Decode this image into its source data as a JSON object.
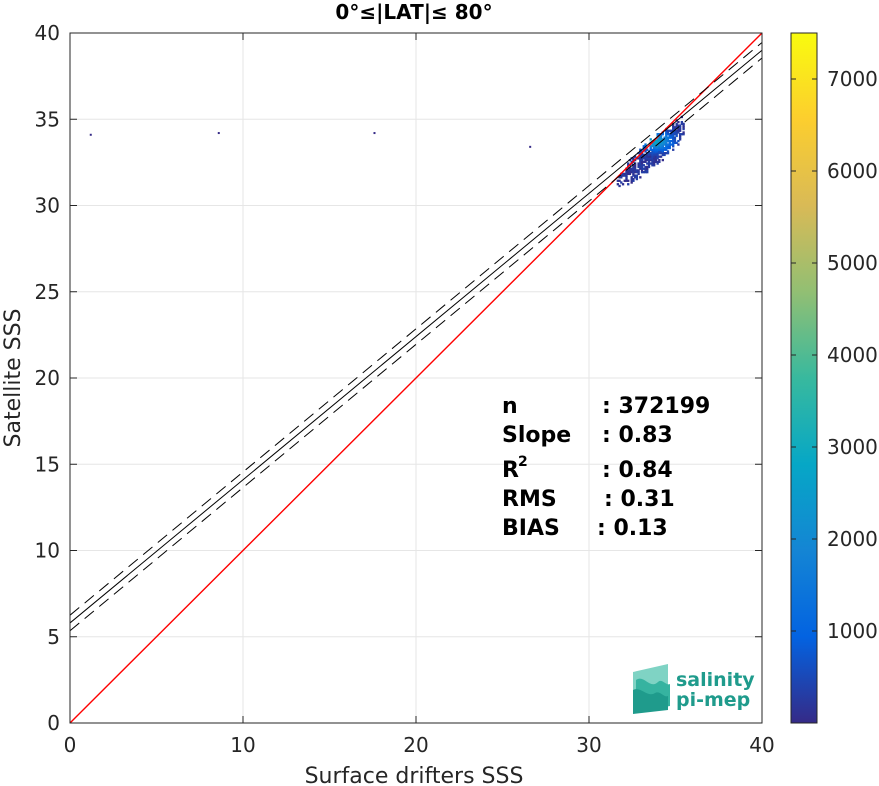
{
  "chart_data": {
    "type": "scatter",
    "title": "0°≤|LAT|≤ 80°",
    "xlabel": "Surface drifters SSS",
    "ylabel": "Satellite SSS",
    "xlim": [
      0,
      40
    ],
    "ylim": [
      0,
      40
    ],
    "x_ticks": [
      "0",
      "10",
      "20",
      "30",
      "40"
    ],
    "y_ticks": [
      "0",
      "5",
      "10",
      "15",
      "20",
      "25",
      "30",
      "35",
      "40"
    ],
    "grid": true,
    "reference_line": {
      "name": "1:1",
      "color": "#ff0000",
      "points": [
        [
          0,
          0
        ],
        [
          40,
          40
        ]
      ]
    },
    "fit_line": {
      "slope": 0.83,
      "intercept": 5.8,
      "color": "#000000"
    },
    "confidence_offsets": [
      -0.45,
      0.45
    ],
    "stats": {
      "n_label": "n",
      "n_value": ": 372199",
      "slope_label": "Slope",
      "slope_value": ": 0.83",
      "r2_label": "R",
      "r2_sup": "2",
      "r2_value": ": 0.84",
      "rms_label": "RMS",
      "rms_value": ": 0.31",
      "bias_label": "BIAS",
      "bias_value": ": 0.13"
    },
    "density_cluster": {
      "x_range": [
        28,
        35.5
      ],
      "y_range": [
        29.8,
        35.2
      ],
      "peak": [
        33.8,
        33.7
      ],
      "colormap": "parula"
    },
    "outliers": [
      [
        1.2,
        34.1
      ],
      [
        8.6,
        34.2
      ],
      [
        17.6,
        34.2
      ],
      [
        26.6,
        33.4
      ]
    ],
    "colorbar": {
      "min": 0,
      "max": 7500,
      "ticks": [
        "1000",
        "2000",
        "3000",
        "4000",
        "5000",
        "6000",
        "7000"
      ],
      "tick_values": [
        1000,
        2000,
        3000,
        4000,
        5000,
        6000,
        7000
      ]
    }
  },
  "logo": {
    "line1": "salinity",
    "line2": "pi-mep"
  }
}
